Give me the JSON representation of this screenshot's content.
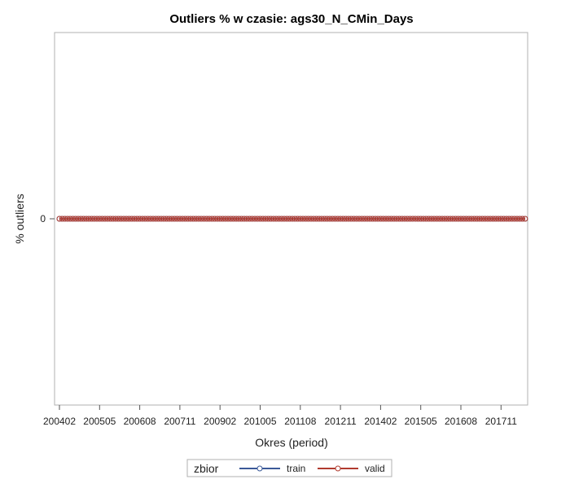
{
  "chart_data": {
    "type": "line",
    "title": "Outliers % w czasie: ags30_N_CMin_Days",
    "xlabel": "Okres (period)",
    "ylabel": "% outliers",
    "x_start": "200402",
    "x_end": "201808",
    "x_ticks": [
      "200402",
      "200505",
      "200608",
      "200711",
      "200902",
      "201005",
      "201108",
      "201211",
      "201402",
      "201505",
      "201608",
      "201711"
    ],
    "y_ticks": [
      "0"
    ],
    "ylim": [
      -1,
      1
    ],
    "grid": false,
    "legend": {
      "title": "zbior",
      "placement": "bottom"
    },
    "series": [
      {
        "name": "train",
        "color": "#3b5998",
        "marker": "circle",
        "value": 0
      },
      {
        "name": "valid",
        "color": "#b03a2e",
        "marker": "circle",
        "value": 0
      }
    ]
  }
}
